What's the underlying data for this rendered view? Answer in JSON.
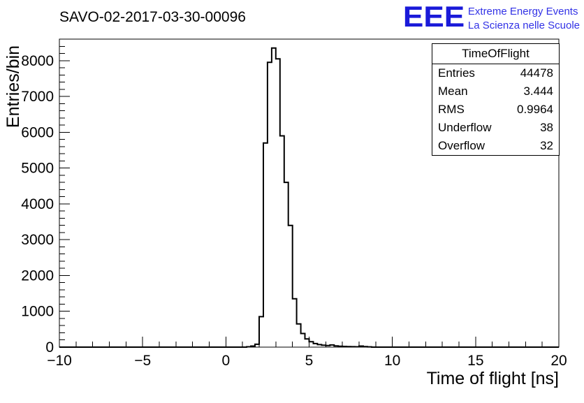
{
  "header": {
    "title": "SAVO-02-2017-03-30-00096",
    "logo": {
      "eee": "EEE",
      "line1": "Extreme Energy Events",
      "line2": "La Scienza nelle Scuole",
      "color_eee": "#1a1ad9",
      "color_text": "#3232e6"
    }
  },
  "stats_box": {
    "header": "TimeOfFlight",
    "rows": [
      {
        "label": "Entries",
        "value": "44478"
      },
      {
        "label": "Mean",
        "value": "3.444"
      },
      {
        "label": "RMS",
        "value": "0.9964"
      },
      {
        "label": "Underflow",
        "value": "38"
      },
      {
        "label": "Overflow",
        "value": "32"
      }
    ]
  },
  "chart_data": {
    "type": "histogram",
    "title": "SAVO-02-2017-03-30-00096",
    "xlabel": "Time of flight [ns]",
    "ylabel": "Entries/bin",
    "xlim": [
      -10,
      20
    ],
    "ylim": [
      0,
      8600
    ],
    "x_major_ticks": [
      -10,
      -5,
      0,
      5,
      10,
      15,
      20
    ],
    "x_minor_step": 1,
    "y_major_ticks": [
      0,
      1000,
      2000,
      3000,
      4000,
      5000,
      6000,
      7000,
      8000
    ],
    "y_minor_step": 200,
    "grid": false,
    "line_color": "#000000",
    "bin_start": 1.25,
    "bin_width": 0.25,
    "bin_values": [
      10,
      30,
      80,
      850,
      5700,
      7950,
      8350,
      8050,
      5900,
      4600,
      3400,
      1350,
      650,
      380,
      230,
      150,
      100,
      70,
      55,
      45,
      60,
      35,
      25,
      20,
      15,
      12,
      10,
      30,
      15,
      8
    ],
    "stats": {
      "entries": 44478,
      "mean": 3.444,
      "rms": 0.9964,
      "underflow": 38,
      "overflow": 32
    }
  }
}
